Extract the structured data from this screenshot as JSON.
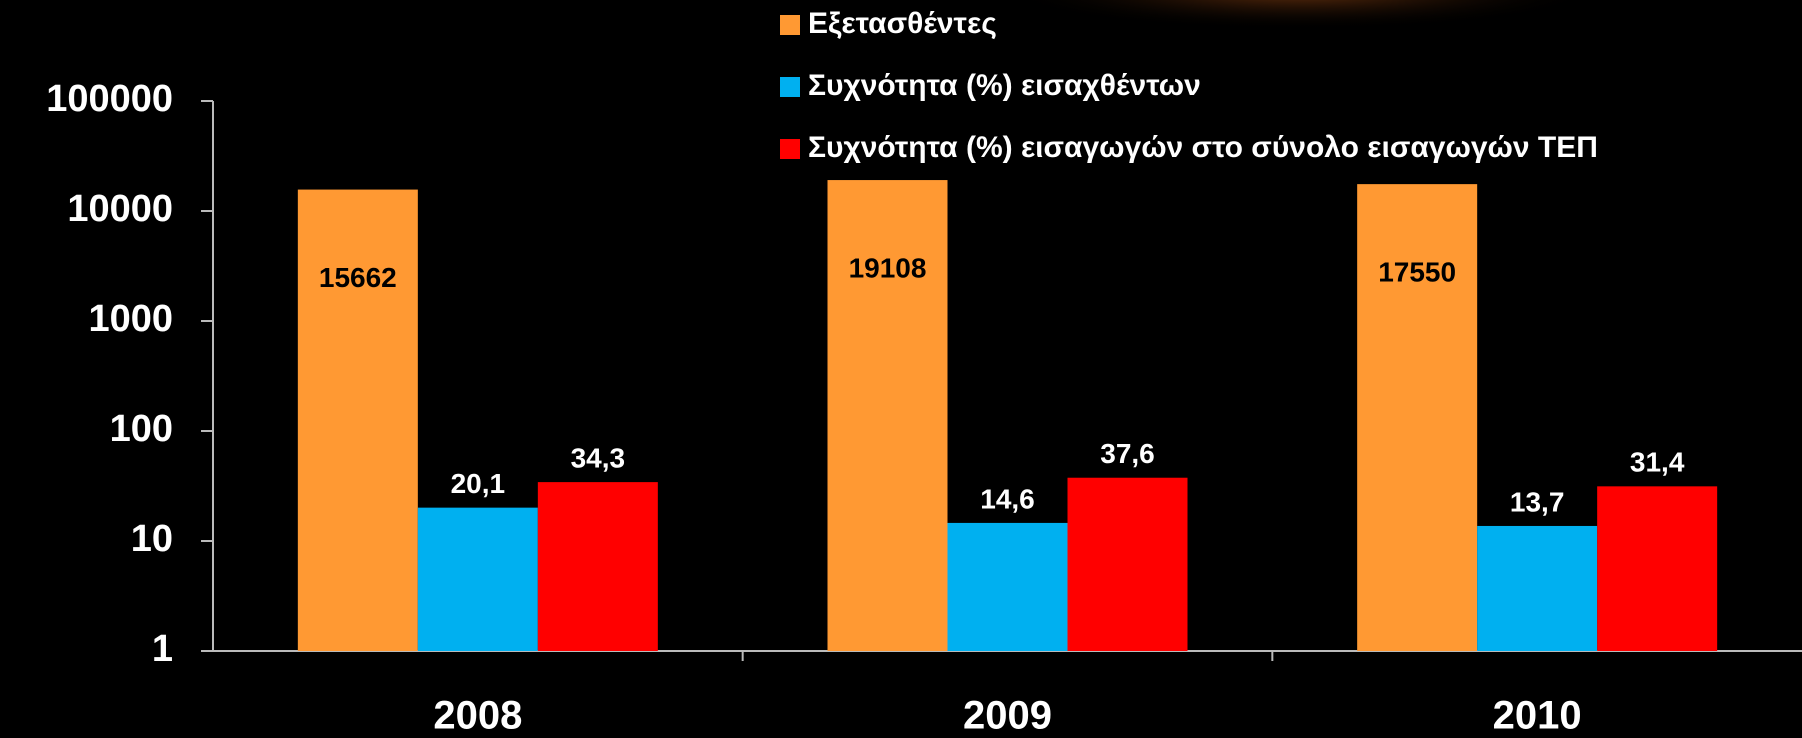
{
  "chart_data": {
    "type": "bar",
    "categories": [
      "2008",
      "2009",
      "2010"
    ],
    "series": [
      {
        "name": "Εξετασθέντες",
        "color": "#ff9933",
        "values": [
          15662,
          19108,
          17550
        ],
        "value_labels": [
          "15662",
          "19108",
          "17550"
        ]
      },
      {
        "name": "Συχνότητα (%) εισαχθέντων",
        "color": "#00b0f0",
        "values": [
          20.1,
          14.6,
          13.7
        ],
        "value_labels": [
          "20,1",
          "14,6",
          "13,7"
        ]
      },
      {
        "name": "Συχνότητα (%) εισαγωγών στο σύνολο εισαγωγών ΤΕΠ",
        "color": "#ff0000",
        "values": [
          34.3,
          37.6,
          31.4
        ],
        "value_labels": [
          "34,3",
          "37,6",
          "31,4"
        ]
      }
    ],
    "ylim": [
      1,
      100000
    ],
    "yticks": [
      1,
      10,
      100,
      1000,
      10000,
      100000
    ],
    "log_scale": true,
    "grid": false,
    "legend": "top"
  }
}
